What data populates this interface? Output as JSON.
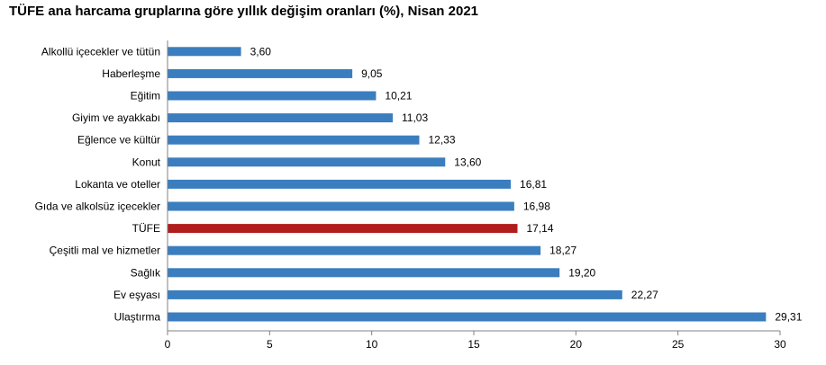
{
  "chart_data": {
    "type": "bar",
    "orientation": "horizontal",
    "title": "TÜFE ana harcama gruplarına göre yıllık değişim oranları (%), Nisan 2021",
    "categories": [
      "Alkollü içecekler ve tütün",
      "Haberleşme",
      "Eğitim",
      "Giyim ve ayakkabı",
      "Eğlence ve kültür",
      "Konut",
      "Lokanta ve oteller",
      "Gıda ve alkolsüz içecekler",
      "TÜFE",
      "Çeşitli mal ve hizmetler",
      "Sağlık",
      "Ev eşyası",
      "Ulaştırma"
    ],
    "values": [
      3.6,
      9.05,
      10.21,
      11.03,
      12.33,
      13.6,
      16.81,
      16.98,
      17.14,
      18.27,
      19.2,
      22.27,
      29.31
    ],
    "value_labels": [
      "3,60",
      "9,05",
      "10,21",
      "11,03",
      "12,33",
      "13,60",
      "16,81",
      "16,98",
      "17,14",
      "18,27",
      "19,20",
      "22,27",
      "29,31"
    ],
    "highlight_category": "TÜFE",
    "xlim": [
      0,
      30
    ],
    "xticks": [
      0,
      5,
      10,
      15,
      20,
      25,
      30
    ],
    "xlabel": "",
    "ylabel": "",
    "grid": false,
    "colors": {
      "bar": "#3a7ebf",
      "highlight": "#b11c1c"
    }
  }
}
